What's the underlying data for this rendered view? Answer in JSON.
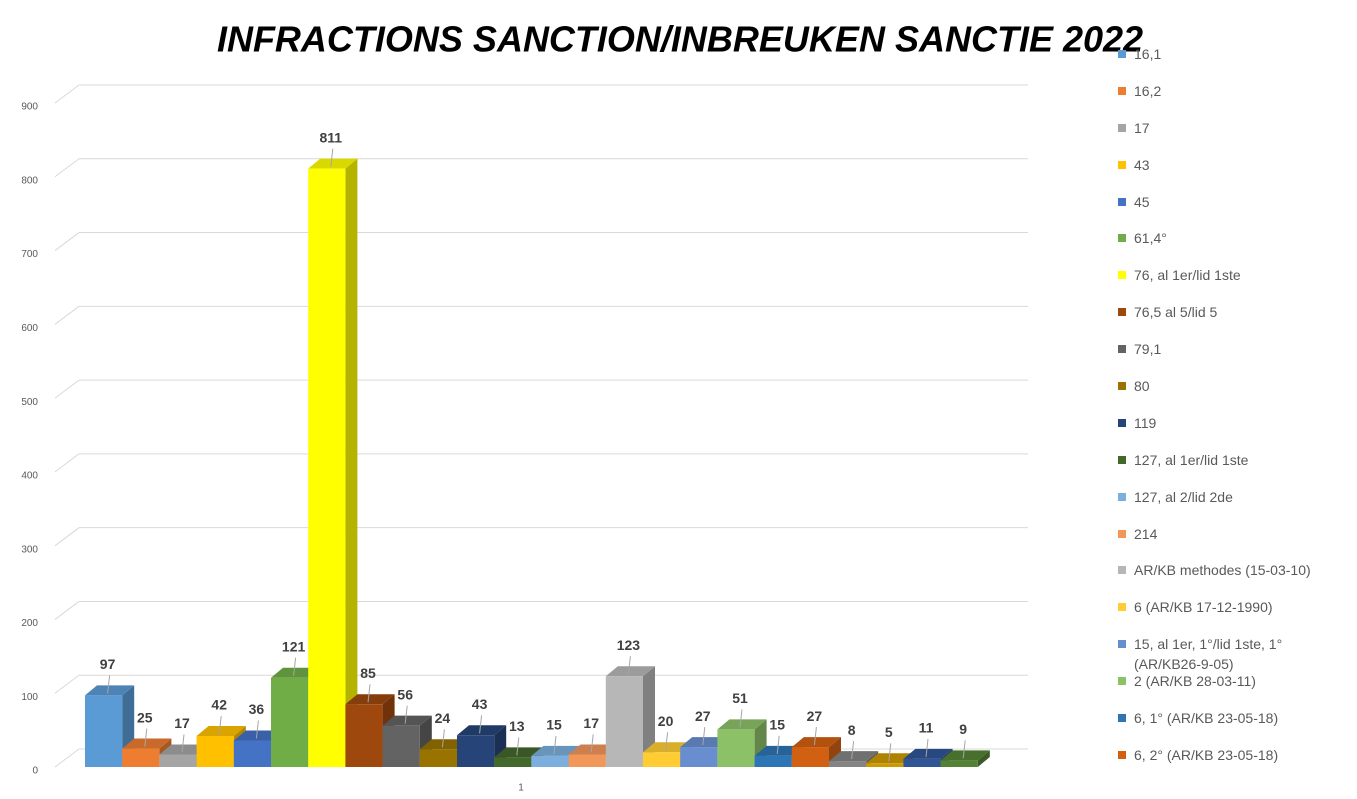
{
  "chart_data": {
    "type": "bar3d",
    "title": "INFRACTIONS SANCTION/INBREUKEN SANCTIE 2022",
    "categories": [
      "1"
    ],
    "ylim": [
      0,
      900
    ],
    "yticks": [
      0,
      100,
      200,
      300,
      400,
      500,
      600,
      700,
      800,
      900
    ],
    "grid": true,
    "legend": "right",
    "series": [
      {
        "name": "16,1",
        "color": "#5b9bd5",
        "values": [
          97
        ]
      },
      {
        "name": "16,2",
        "color": "#ed7d31",
        "values": [
          25
        ]
      },
      {
        "name": "17",
        "color": "#a5a5a5",
        "values": [
          17
        ]
      },
      {
        "name": "43",
        "color": "#ffc000",
        "values": [
          42
        ]
      },
      {
        "name": "45",
        "color": "#4472c4",
        "values": [
          36
        ]
      },
      {
        "name": "61,4°",
        "color": "#70ad47",
        "values": [
          121
        ]
      },
      {
        "name": "76, al 1er/lid 1ste",
        "color": "#ffff00",
        "values": [
          811
        ]
      },
      {
        "name": "76,5 al 5/lid 5",
        "color": "#9e480e",
        "values": [
          85
        ]
      },
      {
        "name": "79,1",
        "color": "#636363",
        "values": [
          56
        ]
      },
      {
        "name": "80",
        "color": "#997300",
        "values": [
          24
        ]
      },
      {
        "name": "119",
        "color": "#264478",
        "values": [
          43
        ]
      },
      {
        "name": "127, al 1er/lid 1ste",
        "color": "#43682b",
        "values": [
          13
        ]
      },
      {
        "name": "127, al 2/lid 2de",
        "color": "#7cafdd",
        "values": [
          15
        ]
      },
      {
        "name": "214",
        "color": "#f1975a",
        "values": [
          17
        ]
      },
      {
        "name": "AR/KB methodes (15-03-10)",
        "color": "#b7b7b7",
        "values": [
          123
        ]
      },
      {
        "name": "6 (AR/KB 17-12-1990)",
        "color": "#ffcd33",
        "values": [
          20
        ]
      },
      {
        "name": "15, al 1er, 1°/lid 1ste, 1° (AR/KB26-9-05)",
        "color": "#698ed0",
        "values": [
          27
        ]
      },
      {
        "name": "2 (AR/KB 28-03-11)",
        "color": "#8cc168",
        "values": [
          51
        ]
      },
      {
        "name": "6, 1° (AR/KB 23-05-18)",
        "color": "#2e75b6",
        "values": [
          15
        ]
      },
      {
        "name": "6, 2° (AR/KB 23-05-18)",
        "color": "#d26012",
        "values": [
          27
        ]
      },
      {
        "color": "#848484",
        "values": [
          8
        ]
      },
      {
        "color": "#cc9a00",
        "values": [
          5
        ]
      },
      {
        "color": "#2f5597",
        "values": [
          11
        ]
      },
      {
        "color": "#548235",
        "values": [
          9
        ]
      }
    ]
  }
}
